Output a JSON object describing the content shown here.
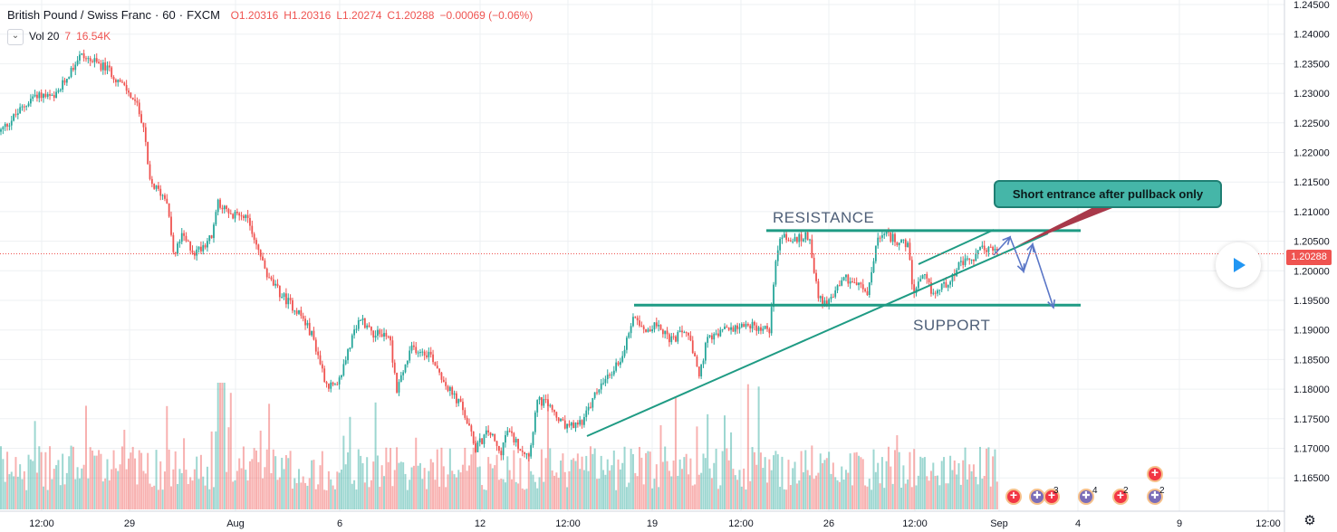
{
  "symbol": {
    "name": "British Pound / Swiss Franc",
    "interval": "60",
    "exchange": "FXCM"
  },
  "ohlc": {
    "open": "O1.20316",
    "high": "H1.20316",
    "low": "L1.20274",
    "close": "C1.20288",
    "change": "−0.00069 (−0.06%)"
  },
  "volume_legend": {
    "chevron": "⌄",
    "label": "Vol 20",
    "v1": "7",
    "v2": "16.54K"
  },
  "annotations": {
    "resistance": "RESISTANCE",
    "support": "SUPPORT",
    "callout": "Short entrance after pullback only"
  },
  "last_price_label": "1.20288",
  "settings_icon": "gear-icon",
  "colors": {
    "up": "#26a69a",
    "down": "#ef5350",
    "drawing": "#1f9b84",
    "arrows": "#5b77c7"
  },
  "events": [
    {
      "icon": "red",
      "count": ""
    },
    {
      "icon": "uk",
      "count": ""
    },
    {
      "icon": "red",
      "count": "3"
    },
    {
      "icon": "uk",
      "count": "4"
    },
    {
      "icon": "red",
      "count": "2"
    },
    {
      "icon": "red",
      "count": ""
    },
    {
      "icon": "uk",
      "count": "2"
    }
  ],
  "chart_data": {
    "type": "candlestick",
    "title": "British Pound / Swiss Franc, 60, FXCM",
    "ylim": [
      1.1625,
      1.2455
    ],
    "y_ticks": [
      "1.24500",
      "1.24000",
      "1.23500",
      "1.23000",
      "1.22500",
      "1.22000",
      "1.21500",
      "1.21000",
      "1.20500",
      "1.20000",
      "1.19500",
      "1.19000",
      "1.18500",
      "1.18000",
      "1.17500",
      "1.17000",
      "1.16500"
    ],
    "x_ticks": [
      "12:00",
      "29",
      "Aug",
      "6",
      "12",
      "12:00",
      "19",
      "12:00",
      "26",
      "12:00",
      "Sep",
      "4",
      "9",
      "12:00"
    ],
    "price_path": [
      [
        0,
        1.2235
      ],
      [
        40,
        1.23
      ],
      [
        60,
        1.229
      ],
      [
        88,
        1.2365
      ],
      [
        120,
        1.234
      ],
      [
        148,
        1.229
      ],
      [
        158,
        1.225
      ],
      [
        165,
        1.215
      ],
      [
        185,
        1.212
      ],
      [
        192,
        1.202
      ],
      [
        200,
        1.206
      ],
      [
        215,
        1.203
      ],
      [
        235,
        1.206
      ],
      [
        240,
        1.212
      ],
      [
        255,
        1.209
      ],
      [
        268,
        1.21
      ],
      [
        280,
        1.206
      ],
      [
        295,
        1.199
      ],
      [
        310,
        1.196
      ],
      [
        330,
        1.193
      ],
      [
        345,
        1.189
      ],
      [
        360,
        1.181
      ],
      [
        372,
        1.18
      ],
      [
        385,
        1.187
      ],
      [
        398,
        1.192
      ],
      [
        412,
        1.1895
      ],
      [
        430,
        1.189
      ],
      [
        438,
        1.18
      ],
      [
        455,
        1.187
      ],
      [
        475,
        1.186
      ],
      [
        495,
        1.18
      ],
      [
        510,
        1.177
      ],
      [
        525,
        1.17
      ],
      [
        540,
        1.173
      ],
      [
        552,
        1.169
      ],
      [
        560,
        1.173
      ],
      [
        575,
        1.17
      ],
      [
        585,
        1.169
      ],
      [
        592,
        1.178
      ],
      [
        605,
        1.1775
      ],
      [
        620,
        1.174
      ],
      [
        632,
        1.1735
      ],
      [
        645,
        1.175
      ],
      [
        660,
        1.18
      ],
      [
        672,
        1.182
      ],
      [
        688,
        1.186
      ],
      [
        700,
        1.193
      ],
      [
        712,
        1.19
      ],
      [
        728,
        1.191
      ],
      [
        740,
        1.188
      ],
      [
        758,
        1.19
      ],
      [
        772,
        1.182
      ],
      [
        780,
        1.188
      ],
      [
        800,
        1.19
      ],
      [
        820,
        1.191
      ],
      [
        835,
        1.1905
      ],
      [
        850,
        1.19
      ],
      [
        856,
        1.202
      ],
      [
        862,
        1.206
      ],
      [
        875,
        1.205
      ],
      [
        893,
        1.206
      ],
      [
        903,
        1.196
      ],
      [
        912,
        1.194
      ],
      [
        930,
        1.199
      ],
      [
        945,
        1.198
      ],
      [
        958,
        1.196
      ],
      [
        968,
        1.205
      ],
      [
        978,
        1.206
      ],
      [
        992,
        1.205
      ],
      [
        1003,
        1.204
      ],
      [
        1008,
        1.196
      ],
      [
        1020,
        1.199
      ],
      [
        1030,
        1.196
      ],
      [
        1045,
        1.198
      ],
      [
        1060,
        1.201
      ],
      [
        1075,
        1.202
      ],
      [
        1085,
        1.204
      ],
      [
        1095,
        1.2035
      ],
      [
        1102,
        1.203
      ]
    ],
    "volume_scale": [
      0,
      1
    ],
    "lines": {
      "resistance": 1.2068,
      "support": 1.1942
    }
  }
}
